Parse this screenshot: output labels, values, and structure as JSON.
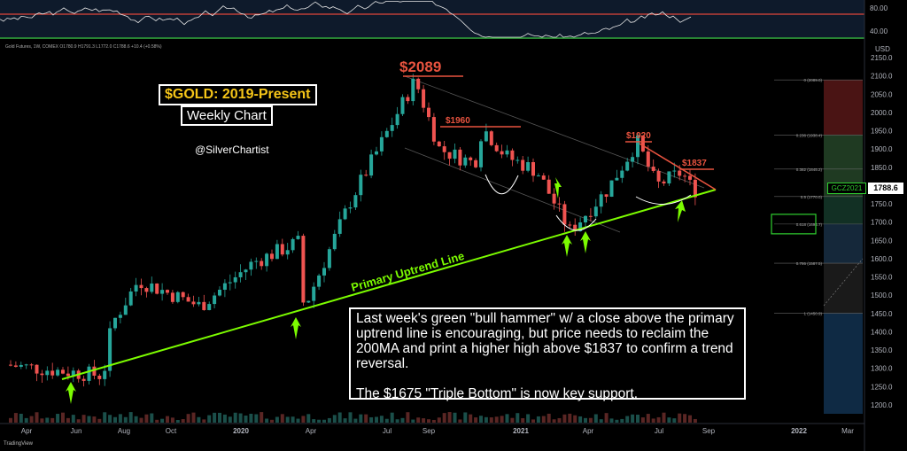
{
  "chart_data": {
    "type": "candlestick",
    "title": "$GOLD: 2019-Present",
    "subtitle": "Weekly Chart",
    "author": "@SilverChartist",
    "symbol_legend": "Gold Futures, 1W, COMEX  O1780.9  H1791.3  L1772.0  C1788.6  +10.4 (+0.58%)",
    "y_axis_unit": "USD",
    "y_ticks": [
      "2150.0",
      "2100.0",
      "2050.0",
      "2000.0",
      "1950.0",
      "1900.0",
      "1850.0",
      "1800.0",
      "1750.0",
      "1700.0",
      "1650.0",
      "1600.0",
      "1550.0",
      "1500.0",
      "1450.0",
      "1400.0",
      "1350.0",
      "1300.0",
      "1250.0",
      "1200.0"
    ],
    "x_ticks": [
      "Apr",
      "Jun",
      "Aug",
      "Oct",
      "2020",
      "Apr",
      "Jul",
      "Sep",
      "2021",
      "Apr",
      "Jul",
      "Sep",
      "2022",
      "Mar"
    ],
    "last_price": "1788.6",
    "symbol_tag": "GCZ2021",
    "rsi_ticks": [
      "80.00",
      "40.00"
    ],
    "annotations": {
      "peak": "$2089",
      "lh_1960": "$1960",
      "lh_1920": "$1920",
      "lh_1837": "$1837",
      "trendline_label": "Primary Uptrend Line"
    },
    "fib_levels": [
      {
        "label": "0 (2089.0)",
        "value": 2089.0
      },
      {
        "label": "0.236 (1938.4)",
        "value": 1938.4
      },
      {
        "label": "0.382 (1845.2)",
        "value": 1845.2
      },
      {
        "label": "0.5 (1770.0)",
        "value": 1770.0
      },
      {
        "label": "0.618 (1694.7)",
        "value": 1694.7
      },
      {
        "label": "0.786 (1587.5)",
        "value": 1587.5
      },
      {
        "label": "1 (1450.9)",
        "value": 1450.9
      }
    ],
    "key_points": [
      {
        "date": "2019-06",
        "value": 1280
      },
      {
        "date": "2020-03",
        "value": 1460
      },
      {
        "date": "2020-08",
        "value": 2089
      },
      {
        "date": "2020-11",
        "value": 1960
      },
      {
        "date": "2021-03",
        "value": 1675
      },
      {
        "date": "2021-06",
        "value": 1920
      },
      {
        "date": "2021-08",
        "value": 1837
      },
      {
        "date": "2021-08-30",
        "value": 1788.6
      }
    ],
    "note": [
      "Last week's green \"bull hammer\" w/ a close above the primary uptrend line is encouraging, but price needs to reclaim the 200MA and print a higher high above $1837 to confirm a trend reversal.",
      "The $1675 \"Triple Bottom\" is now key support."
    ],
    "colors": {
      "up": "#26a69a",
      "down": "#ef5350",
      "trend": "#7CFC00",
      "resistance": "#e8533f",
      "rsi": "#e0e0e0"
    }
  },
  "footer": {
    "brand": "TradingView"
  }
}
